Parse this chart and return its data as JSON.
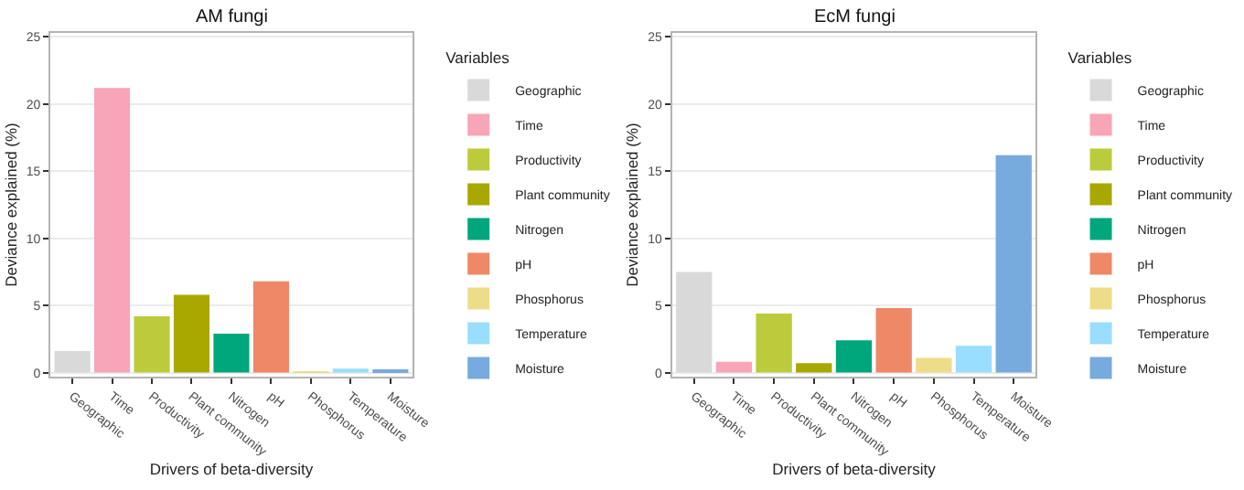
{
  "chart_data": [
    {
      "type": "bar",
      "title": "AM fungi",
      "xlabel": "Drivers of beta-diversity",
      "ylabel": "Deviance explained (%)",
      "legend_title": "Variables",
      "legend": "right",
      "grid": "y",
      "categories": [
        "Geographic",
        "Time",
        "Productivity",
        "Plant community",
        "Nitrogen",
        "pH",
        "Phosphorus",
        "Temperature",
        "Moisture"
      ],
      "series": [
        {
          "name": "Geographic",
          "color": "#d9d9d9",
          "values": [
            1.6,
            null,
            null,
            null,
            null,
            null,
            null,
            null,
            null
          ]
        },
        {
          "name": "Time",
          "color": "#f8a5b8",
          "values": [
            null,
            21.2,
            null,
            null,
            null,
            null,
            null,
            null,
            null
          ]
        },
        {
          "name": "Productivity",
          "color": "#bccb3b",
          "values": [
            null,
            null,
            4.2,
            null,
            null,
            null,
            null,
            null,
            null
          ]
        },
        {
          "name": "Plant community",
          "color": "#a9a800",
          "values": [
            null,
            null,
            null,
            5.8,
            null,
            null,
            null,
            null,
            null
          ]
        },
        {
          "name": "Nitrogen",
          "color": "#00a77c",
          "values": [
            null,
            null,
            null,
            null,
            2.9,
            null,
            null,
            null,
            null
          ]
        },
        {
          "name": "pH",
          "color": "#ee8866",
          "values": [
            null,
            null,
            null,
            null,
            null,
            6.8,
            null,
            null,
            null
          ]
        },
        {
          "name": "Phosphorus",
          "color": "#eedd88",
          "values": [
            null,
            null,
            null,
            null,
            null,
            null,
            0.1,
            null,
            null
          ]
        },
        {
          "name": "Temperature",
          "color": "#99ddff",
          "values": [
            null,
            null,
            null,
            null,
            null,
            null,
            null,
            0.3,
            null
          ]
        },
        {
          "name": "Moisture",
          "color": "#77aadd",
          "values": [
            null,
            null,
            null,
            null,
            null,
            null,
            null,
            null,
            0.2
          ]
        }
      ],
      "ylim": [
        -0.3,
        25.3
      ],
      "yticks": [
        0,
        5,
        10,
        15,
        20,
        25
      ]
    },
    {
      "type": "bar",
      "title": "EcM fungi",
      "xlabel": "Drivers of beta-diversity",
      "ylabel": "Deviance explained (%)",
      "legend_title": "Variables",
      "legend": "right",
      "grid": "y",
      "categories": [
        "Geographic",
        "Time",
        "Productivity",
        "Plant community",
        "Nitrogen",
        "pH",
        "Phosphorus",
        "Temperature",
        "Moisture"
      ],
      "series": [
        {
          "name": "Geographic",
          "color": "#d9d9d9",
          "values": [
            7.5,
            null,
            null,
            null,
            null,
            null,
            null,
            null,
            null
          ]
        },
        {
          "name": "Time",
          "color": "#f8a5b8",
          "values": [
            null,
            0.8,
            null,
            null,
            null,
            null,
            null,
            null,
            null
          ]
        },
        {
          "name": "Productivity",
          "color": "#bccb3b",
          "values": [
            null,
            null,
            4.4,
            null,
            null,
            null,
            null,
            null,
            null
          ]
        },
        {
          "name": "Plant community",
          "color": "#a9a800",
          "values": [
            null,
            null,
            null,
            0.7,
            null,
            null,
            null,
            null,
            null
          ]
        },
        {
          "name": "Nitrogen",
          "color": "#00a77c",
          "values": [
            null,
            null,
            null,
            null,
            2.4,
            null,
            null,
            null,
            null
          ]
        },
        {
          "name": "pH",
          "color": "#ee8866",
          "values": [
            null,
            null,
            null,
            null,
            null,
            4.8,
            null,
            null,
            null
          ]
        },
        {
          "name": "Phosphorus",
          "color": "#eedd88",
          "values": [
            null,
            null,
            null,
            null,
            null,
            null,
            1.1,
            null,
            null
          ]
        },
        {
          "name": "Temperature",
          "color": "#99ddff",
          "values": [
            null,
            null,
            null,
            null,
            null,
            null,
            null,
            2.0,
            null
          ]
        },
        {
          "name": "Moisture",
          "color": "#77aadd",
          "values": [
            null,
            null,
            null,
            null,
            null,
            null,
            null,
            null,
            16.2
          ]
        }
      ],
      "ylim": [
        -0.3,
        25.3
      ],
      "yticks": [
        0,
        5,
        10,
        15,
        20,
        25
      ]
    }
  ]
}
